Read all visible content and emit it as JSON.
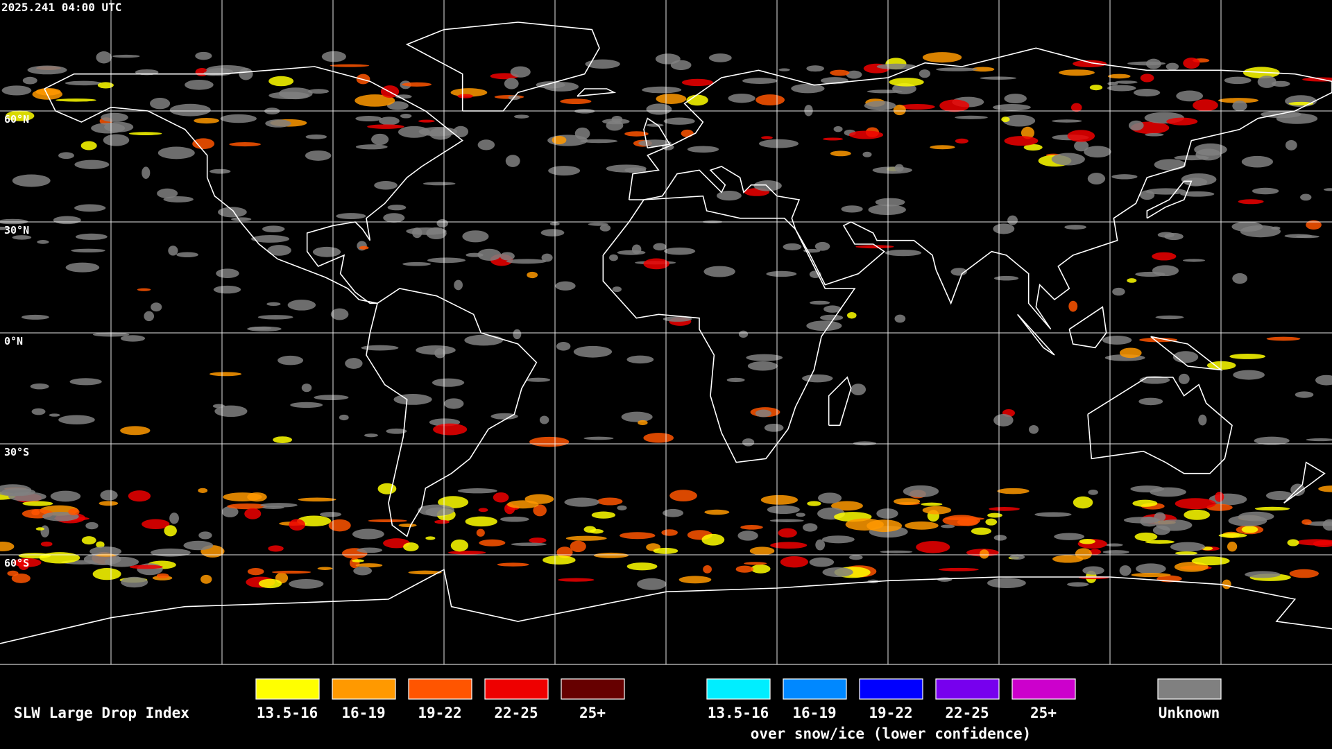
{
  "timestamp": "2025.241 04:00 UTC",
  "lat_labels": [
    "60°N",
    "30°N",
    "0°N",
    "30°S",
    "60°S"
  ],
  "legend": {
    "title": "SLW Large Drop Index",
    "groups": [
      {
        "items": [
          {
            "label": "13.5-16",
            "color": "#ffff00"
          },
          {
            "label": "16-19",
            "color": "#ff9900"
          },
          {
            "label": "19-22",
            "color": "#ff5500"
          },
          {
            "label": "22-25",
            "color": "#ee0000"
          },
          {
            "label": "25+",
            "color": "#660000"
          }
        ]
      },
      {
        "items": [
          {
            "label": "13.5-16",
            "color": "#00eeff"
          },
          {
            "label": "16-19",
            "color": "#0088ff"
          },
          {
            "label": "19-22",
            "color": "#0000ff"
          },
          {
            "label": "22-25",
            "color": "#7700ee"
          },
          {
            "label": "25+",
            "color": "#cc00cc"
          }
        ],
        "caption": "over snow/ice (lower confidence)"
      },
      {
        "items": [
          {
            "label": "Unknown",
            "color": "#808080"
          }
        ]
      }
    ]
  }
}
